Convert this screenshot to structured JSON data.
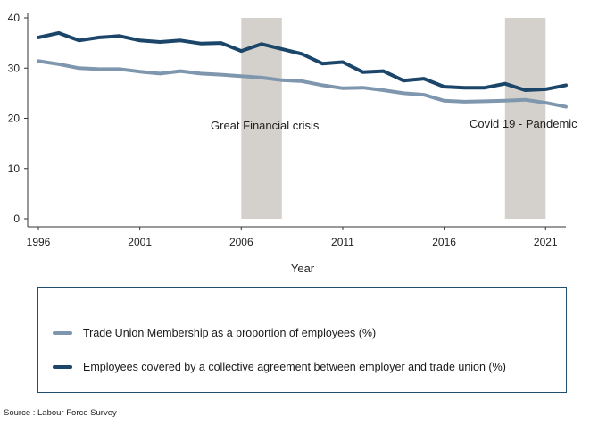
{
  "chart_data": {
    "type": "line",
    "title": "",
    "xlabel": "Year",
    "ylabel": "",
    "xlim": [
      1996,
      2022
    ],
    "ylim": [
      0,
      40
    ],
    "xticks": [
      1996,
      2001,
      2006,
      2011,
      2016,
      2021
    ],
    "yticks": [
      0,
      10,
      20,
      30,
      40
    ],
    "x": [
      1996,
      1997,
      1998,
      1999,
      2000,
      2001,
      2002,
      2003,
      2004,
      2005,
      2006,
      2007,
      2008,
      2009,
      2010,
      2011,
      2012,
      2013,
      2014,
      2015,
      2016,
      2017,
      2018,
      2019,
      2020,
      2021,
      2022
    ],
    "series": [
      {
        "name": "Trade Union Membership as a proportion of employees (%)",
        "color": "#7f97ae",
        "values": [
          31.4,
          30.8,
          30.0,
          29.8,
          29.8,
          29.3,
          28.9,
          29.4,
          28.9,
          28.7,
          28.4,
          28.1,
          27.6,
          27.4,
          26.6,
          26.0,
          26.1,
          25.6,
          25.0,
          24.7,
          23.5,
          23.3,
          23.4,
          23.5,
          23.7,
          23.1,
          22.3
        ]
      },
      {
        "name": "Employees covered by a collective agreement between employer and trade union (%)",
        "color": "#1b4569",
        "values": [
          36.1,
          37.0,
          35.5,
          36.1,
          36.4,
          35.5,
          35.2,
          35.5,
          34.9,
          35.0,
          33.4,
          34.8,
          33.8,
          32.8,
          30.9,
          31.2,
          29.2,
          29.4,
          27.5,
          27.9,
          26.3,
          26.1,
          26.1,
          26.9,
          25.6,
          25.8,
          26.6
        ]
      }
    ],
    "bands": [
      {
        "start": 2006,
        "end": 2008,
        "label": "Great Financial crisis",
        "color": "#d4d0cb"
      },
      {
        "start": 2019,
        "end": 2021,
        "label": "Covid 19 - Pandemic",
        "color": "#d4d0cb"
      }
    ]
  },
  "source_text": "Source : Labour Force Survey"
}
